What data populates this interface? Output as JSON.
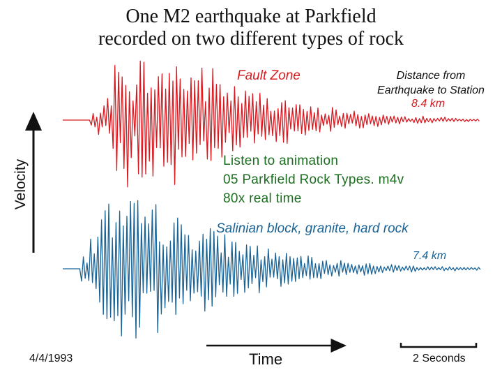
{
  "chart_data": {
    "type": "line",
    "title_line1": "One M2 earthquake at Parkfield",
    "title_line2": "recorded on two different types of rock",
    "ylabel": "Velocity",
    "xlabel": "Time",
    "date": "4/4/1993",
    "scale_bar_label": "2 Seconds",
    "distance_header_line1": "Distance from",
    "distance_header_line2": "Earthquake to Station",
    "series": [
      {
        "name": "Fault Zone",
        "distance": "8.4 km",
        "color": "#d71920",
        "values": [
          0.0,
          0.1,
          -0.2,
          0.5,
          -0.8,
          1.0,
          -0.6,
          0.9,
          -1.0,
          0.7,
          -0.9,
          1.0,
          -0.7,
          0.8,
          -0.85,
          0.6,
          -0.75,
          0.65,
          -0.5,
          0.55,
          -0.45,
          0.4,
          -0.42,
          0.35,
          -0.3,
          0.33,
          -0.25,
          0.22,
          -0.2,
          0.18,
          -0.15,
          0.2,
          -0.12,
          0.1,
          -0.14,
          0.12,
          -0.08,
          0.09,
          -0.07,
          0.06,
          -0.05,
          0.04,
          -0.06,
          0.05,
          -0.03,
          0.04,
          -0.03,
          0.03,
          -0.02,
          0.02
        ]
      },
      {
        "name": "Salinian block, granite, hard rock",
        "distance": "7.4 km",
        "color": "#1a6396",
        "values": [
          0.0,
          0.2,
          -0.5,
          0.9,
          -1.0,
          0.95,
          -0.8,
          1.0,
          -0.9,
          0.85,
          -1.0,
          0.8,
          -0.75,
          0.7,
          -0.65,
          0.7,
          -0.6,
          0.55,
          -0.5,
          0.45,
          -0.4,
          0.42,
          -0.35,
          0.3,
          -0.28,
          0.25,
          -0.22,
          0.2,
          -0.18,
          0.16,
          -0.14,
          0.12,
          -0.13,
          0.11,
          -0.09,
          0.1,
          -0.08,
          0.07,
          -0.06,
          0.06,
          -0.05,
          0.05,
          -0.04,
          0.04,
          -0.03,
          0.03,
          -0.03,
          0.02,
          -0.02,
          0.02
        ]
      }
    ]
  },
  "overlay": {
    "line1": "Listen to animation",
    "line2": "05 Parkfield Rock Types. m4v",
    "line3": "80x real time"
  }
}
